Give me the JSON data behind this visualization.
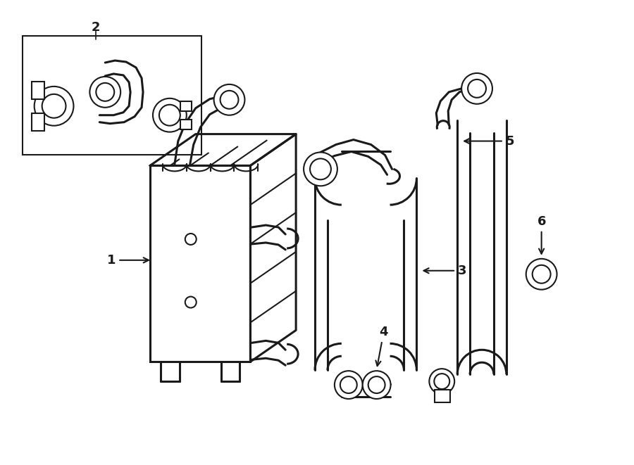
{
  "bg_color": "#ffffff",
  "line_color": "#1a1a1a",
  "lw": 1.5,
  "lw_thick": 2.2,
  "fig_w": 9.0,
  "fig_h": 6.61,
  "dpi": 100
}
